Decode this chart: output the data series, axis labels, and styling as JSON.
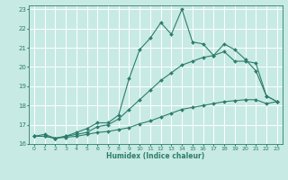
{
  "xlabel": "Humidex (Indice chaleur)",
  "bg_color": "#c8eae4",
  "grid_color": "#ffffff",
  "line_color": "#2d7d6c",
  "xlim": [
    -0.5,
    23.5
  ],
  "ylim": [
    16,
    23.2
  ],
  "xticks": [
    0,
    1,
    2,
    3,
    4,
    5,
    6,
    7,
    8,
    9,
    10,
    11,
    12,
    13,
    14,
    15,
    16,
    17,
    18,
    19,
    20,
    21,
    22,
    23
  ],
  "yticks": [
    16,
    17,
    18,
    19,
    20,
    21,
    22,
    23
  ],
  "line1_x": [
    0,
    1,
    2,
    3,
    4,
    5,
    6,
    7,
    8,
    9,
    10,
    11,
    12,
    13,
    14,
    15,
    16,
    17,
    18,
    19,
    20,
    21,
    22,
    23
  ],
  "line1_y": [
    16.4,
    16.5,
    16.3,
    16.4,
    16.6,
    16.8,
    17.1,
    17.1,
    17.5,
    19.4,
    20.9,
    21.5,
    22.3,
    21.7,
    23.0,
    21.3,
    21.2,
    20.6,
    21.2,
    20.9,
    20.4,
    19.8,
    18.5,
    18.2
  ],
  "line2_x": [
    0,
    1,
    2,
    3,
    4,
    5,
    6,
    7,
    8,
    9,
    10,
    11,
    12,
    13,
    14,
    15,
    16,
    17,
    18,
    19,
    20,
    21,
    22,
    23
  ],
  "line2_y": [
    16.4,
    16.4,
    16.3,
    16.4,
    16.5,
    16.6,
    16.9,
    17.0,
    17.3,
    17.8,
    18.3,
    18.8,
    19.3,
    19.7,
    20.1,
    20.3,
    20.5,
    20.6,
    20.8,
    20.3,
    20.3,
    20.2,
    18.5,
    18.2
  ],
  "line3_x": [
    0,
    1,
    2,
    3,
    4,
    5,
    6,
    7,
    8,
    9,
    10,
    11,
    12,
    13,
    14,
    15,
    16,
    17,
    18,
    19,
    20,
    21,
    22,
    23
  ],
  "line3_y": [
    16.4,
    16.4,
    16.3,
    16.35,
    16.4,
    16.5,
    16.6,
    16.65,
    16.75,
    16.85,
    17.05,
    17.2,
    17.4,
    17.6,
    17.8,
    17.9,
    18.0,
    18.1,
    18.2,
    18.25,
    18.3,
    18.3,
    18.1,
    18.2
  ]
}
